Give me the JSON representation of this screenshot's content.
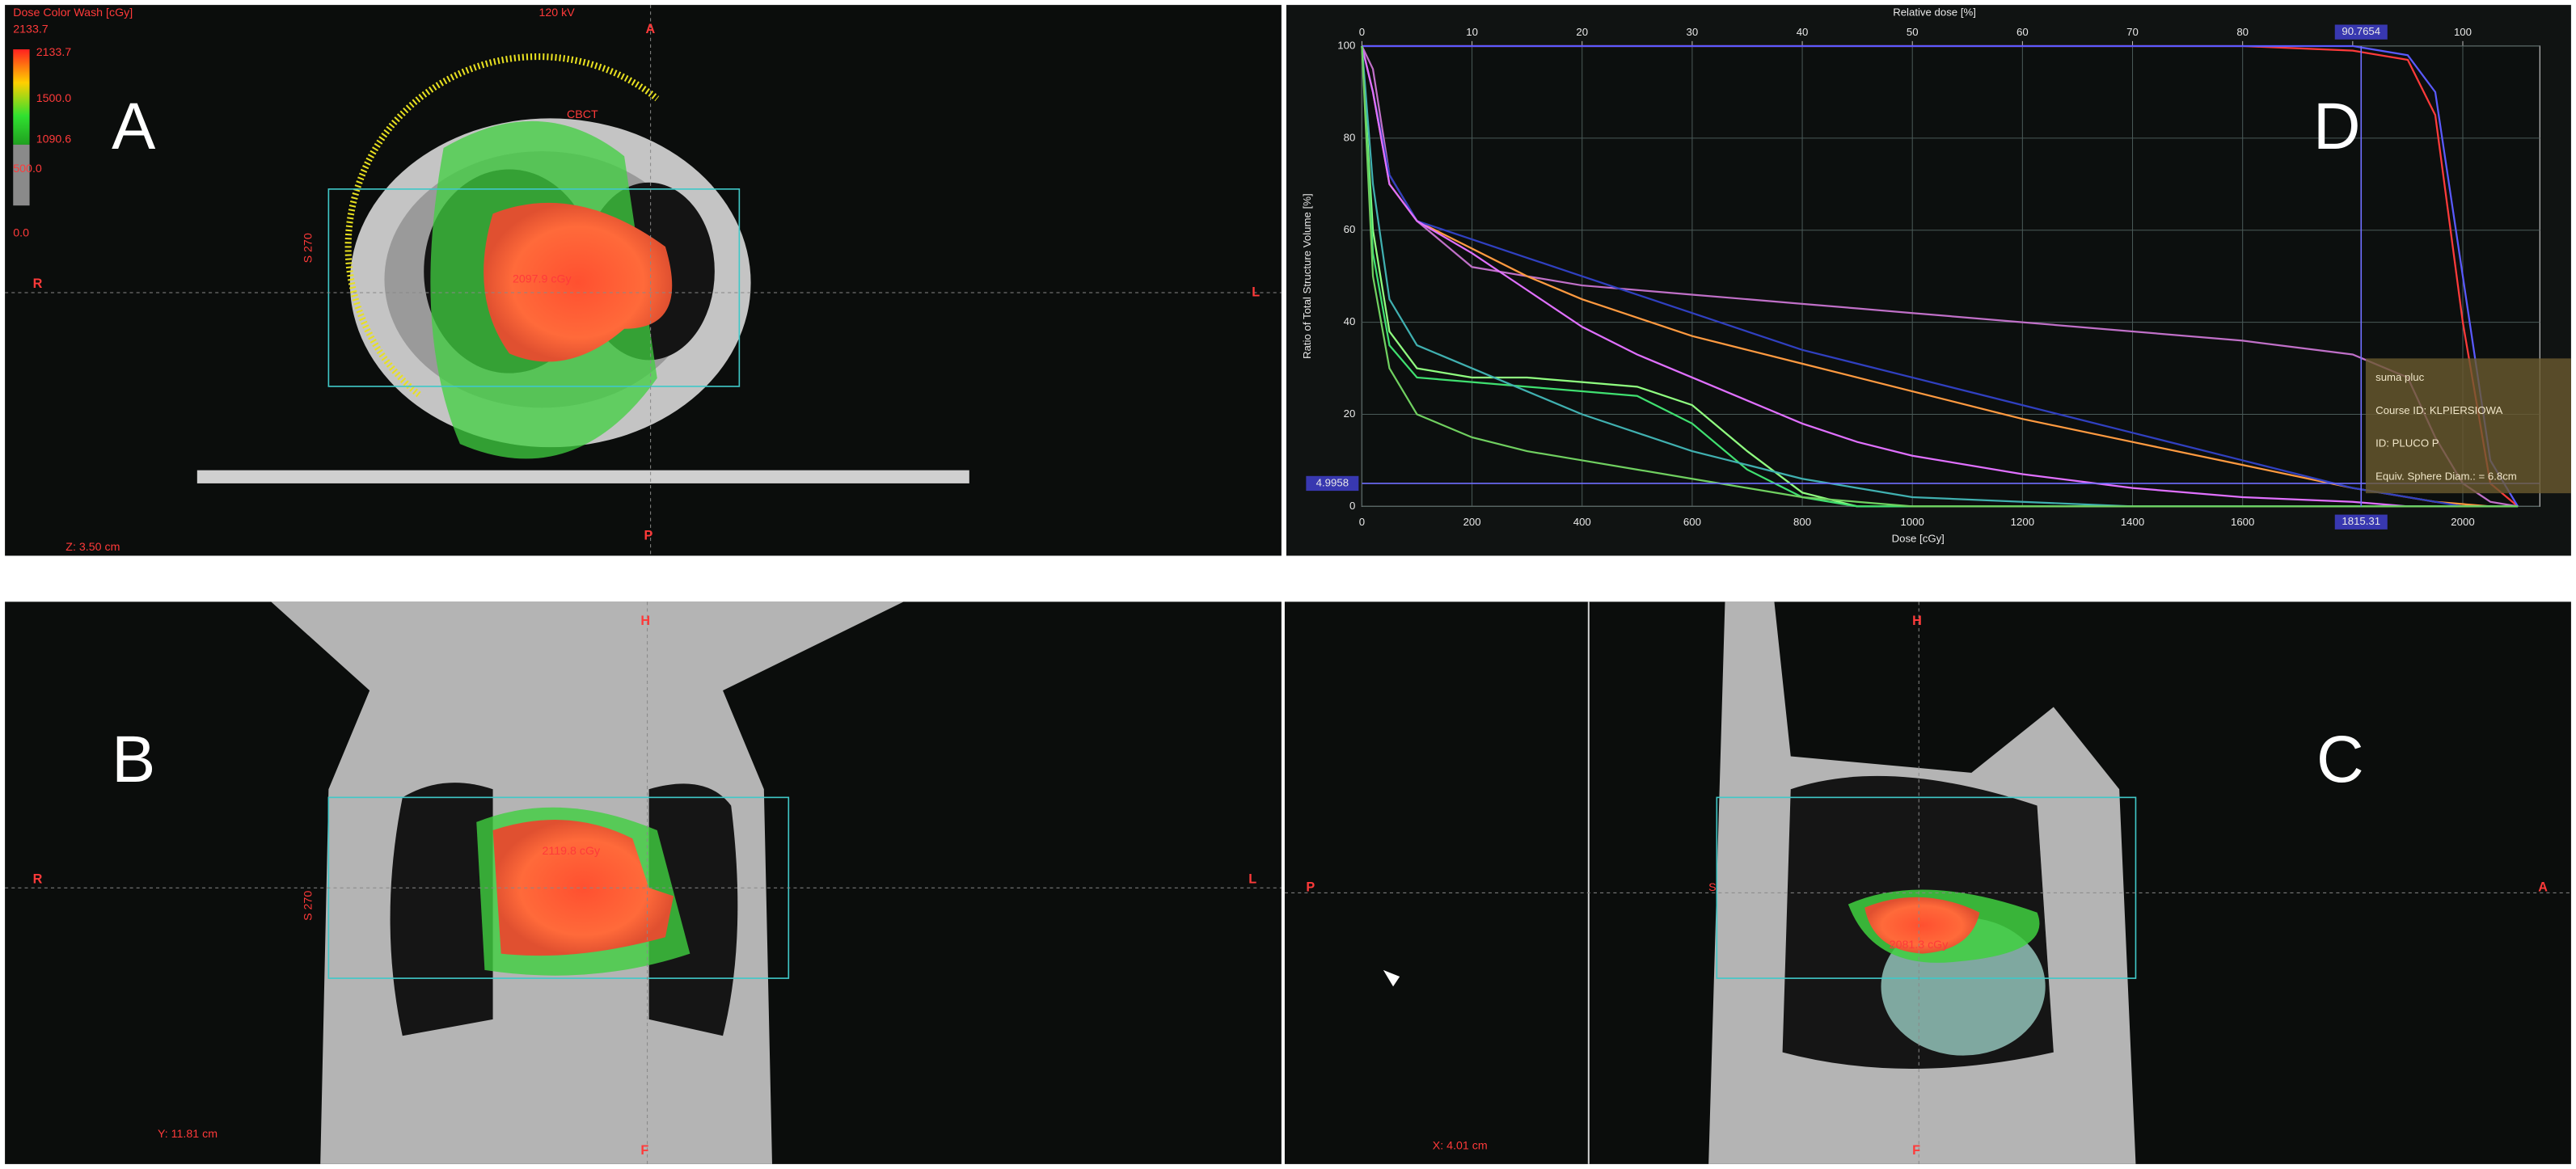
{
  "panels": {
    "A": {
      "label": "A",
      "colorbar_title": "Dose Color Wash [cGy]",
      "colorbar_levels": [
        "2133.7",
        "2133.7",
        "1500.0",
        "1090.6",
        "500.0",
        "0.0"
      ],
      "kv": "120 kV",
      "top": "A",
      "left": "R",
      "right": "L",
      "bottom": "P",
      "field_size": "S 270",
      "cbct": "CBCT",
      "dose_max": "2097.9 cGy",
      "slice": "Z: 3.50 cm"
    },
    "B": {
      "label": "B",
      "top": "H",
      "left": "R",
      "right": "L",
      "bottom": "F",
      "field_size": "S 270",
      "dose_max": "2119.8 cGy",
      "slice": "Y: 11.81 cm"
    },
    "C": {
      "label": "C",
      "top": "H",
      "left": "P",
      "right": "A",
      "bottom": "F",
      "field_size": "S",
      "dose_max": "2081.3 cGy",
      "slice": "X: 4.01 cm"
    }
  },
  "chart_data": {
    "type": "line",
    "label": "D",
    "x_label": "Dose [cGy]",
    "x2_label": "Relative dose [%]",
    "y_label": "Ratio of Total Structure Volume [%]",
    "x": [
      0,
      20,
      50,
      100,
      200,
      300,
      400,
      500,
      600,
      700,
      800,
      900,
      1000,
      1200,
      1400,
      1600,
      1800,
      1900,
      1950,
      2000,
      2050,
      2100
    ],
    "series": [
      {
        "color": "#ff3b3b",
        "values": [
          100,
          100,
          100,
          100,
          100,
          100,
          100,
          100,
          100,
          100,
          100,
          100,
          100,
          100,
          100,
          100,
          99,
          97,
          85,
          40,
          5,
          0
        ]
      },
      {
        "color": "#5a5aff",
        "values": [
          100,
          100,
          100,
          100,
          100,
          100,
          100,
          100,
          100,
          100,
          100,
          100,
          100,
          100,
          100,
          100,
          100,
          98,
          90,
          50,
          10,
          0
        ]
      },
      {
        "color": "#c070c8",
        "values": [
          100,
          95,
          72,
          62,
          52,
          50,
          48,
          47,
          46,
          45,
          44,
          43,
          42,
          40,
          38,
          36,
          33,
          28,
          15,
          5,
          1,
          0
        ]
      },
      {
        "color": "#ff9a40",
        "values": [
          100,
          90,
          70,
          62,
          56,
          50,
          45,
          41,
          37,
          34,
          31,
          28,
          25,
          19,
          14,
          9,
          4,
          2,
          1,
          0.5,
          0,
          0
        ]
      },
      {
        "color": "#3040c0",
        "values": [
          100,
          90,
          72,
          62,
          58,
          54,
          50,
          46,
          42,
          38,
          34,
          31,
          28,
          22,
          16,
          10,
          4,
          2,
          1,
          0,
          0,
          0
        ]
      },
      {
        "color": "#e070ff",
        "values": [
          100,
          90,
          70,
          62,
          55,
          47,
          39,
          33,
          28,
          23,
          18,
          14,
          11,
          7,
          4,
          2,
          1,
          0,
          0,
          0,
          0,
          0
        ]
      },
      {
        "color": "#90ff80",
        "values": [
          100,
          60,
          38,
          30,
          28,
          28,
          27,
          26,
          22,
          12,
          3,
          0,
          0,
          0,
          0,
          0,
          0,
          0,
          0,
          0,
          0,
          0
        ]
      },
      {
        "color": "#40e070",
        "values": [
          100,
          55,
          35,
          28,
          27,
          26,
          25,
          24,
          18,
          8,
          2,
          0,
          0,
          0,
          0,
          0,
          0,
          0,
          0,
          0,
          0,
          0
        ]
      },
      {
        "color": "#40b0b0",
        "values": [
          100,
          70,
          45,
          35,
          30,
          25,
          20,
          16,
          12,
          9,
          6,
          4,
          2,
          1,
          0,
          0,
          0,
          0,
          0,
          0,
          0,
          0
        ]
      },
      {
        "color": "#70d060",
        "values": [
          100,
          50,
          30,
          20,
          15,
          12,
          10,
          8,
          6,
          4,
          2,
          1,
          0,
          0,
          0,
          0,
          0,
          0,
          0,
          0,
          0,
          0
        ]
      }
    ],
    "xlim": [
      0,
      2140
    ],
    "xticks": [
      0,
      200,
      400,
      600,
      800,
      1000,
      1200,
      1400,
      1600,
      2000
    ],
    "x2lim": [
      0,
      107
    ],
    "x2ticks": [
      0,
      10,
      20,
      30,
      40,
      50,
      60,
      70,
      80,
      90,
      100
    ],
    "ylim": [
      0,
      100
    ],
    "yticks": [
      0,
      20,
      40,
      60,
      80,
      100
    ],
    "grid": true,
    "cursor": {
      "dose": 1815.31,
      "relative": 90.7654,
      "volume": 4.9958
    },
    "legend_box": [
      "suma pluc",
      "Course ID: KLPIERSIOWA",
      "ID: PLUCO P",
      "Equiv. Sphere Diam.: = 6.8cm"
    ]
  }
}
